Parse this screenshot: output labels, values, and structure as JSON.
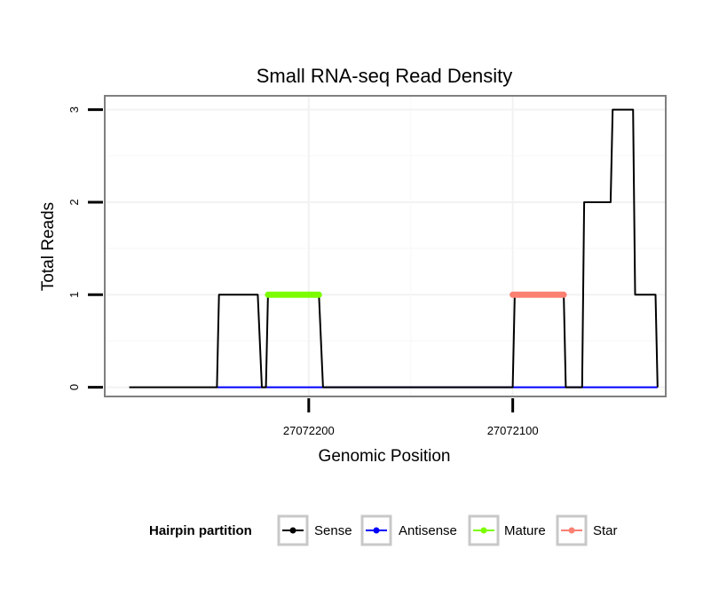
{
  "chart_data": {
    "type": "line",
    "title": "Small RNA-seq Read Density",
    "xlabel": "Genomic Position",
    "ylabel": "Total Reads",
    "xlim": [
      27072300,
      27072025
    ],
    "ylim": [
      -0.1,
      3.15
    ],
    "x_reversed": true,
    "x_ticks": [
      27072200,
      27072100
    ],
    "x_tick_labels": [
      "27072200",
      "27072100"
    ],
    "y_ticks": [
      0,
      1,
      2,
      3
    ],
    "y_tick_labels": [
      "0",
      "1",
      "2",
      "3"
    ],
    "grid": true,
    "legend": {
      "title": "Hairpin partition",
      "position": "bottom",
      "entries": [
        {
          "name": "Sense",
          "color": "#000000"
        },
        {
          "name": "Antisense",
          "color": "#0000ff"
        },
        {
          "name": "Mature",
          "color": "#7cfc00"
        },
        {
          "name": "Star",
          "color": "#fa8072"
        }
      ]
    },
    "series": [
      {
        "name": "Sense",
        "color": "#000000",
        "x": [
          27072288,
          27072245,
          27072244,
          27072225,
          27072223,
          27072221,
          27072220,
          27072195,
          27072193,
          27072100,
          27072099,
          27072075,
          27072074,
          27072066,
          27072065,
          27072052,
          27072051,
          27072041,
          27072040,
          27072030,
          27072029
        ],
        "y": [
          0,
          0,
          1,
          1,
          0,
          0,
          1,
          1,
          0,
          0,
          1,
          1,
          0,
          0,
          2,
          2,
          3,
          3,
          1,
          1,
          0
        ]
      },
      {
        "name": "Antisense",
        "color": "#0000ff",
        "x": [
          27072245,
          27072029
        ],
        "y": [
          0,
          0
        ]
      },
      {
        "name": "Mature",
        "color": "#7cfc00",
        "x": [
          27072220,
          27072195
        ],
        "y": [
          1,
          1
        ]
      },
      {
        "name": "Star",
        "color": "#fa8072",
        "x": [
          27072100,
          27072075
        ],
        "y": [
          1,
          1
        ]
      }
    ]
  }
}
